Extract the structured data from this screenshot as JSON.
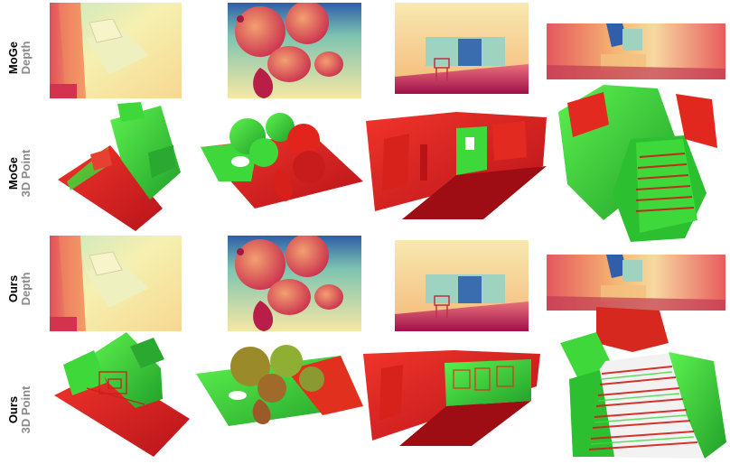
{
  "rows": [
    {
      "method": "MoGe",
      "kind": "Depth"
    },
    {
      "method": "MoGe",
      "kind": "3D Point"
    },
    {
      "method": "Ours",
      "kind": "Depth"
    },
    {
      "method": "Ours",
      "kind": "3D Point"
    }
  ],
  "colors": {
    "depth_near": "#b8124a",
    "depth_mid": "#f4b26a",
    "depth_far": "#f7f2b4",
    "depth_back": "#2e5fa8",
    "point_red": "#e0241c",
    "point_green": "#3ed83a"
  }
}
